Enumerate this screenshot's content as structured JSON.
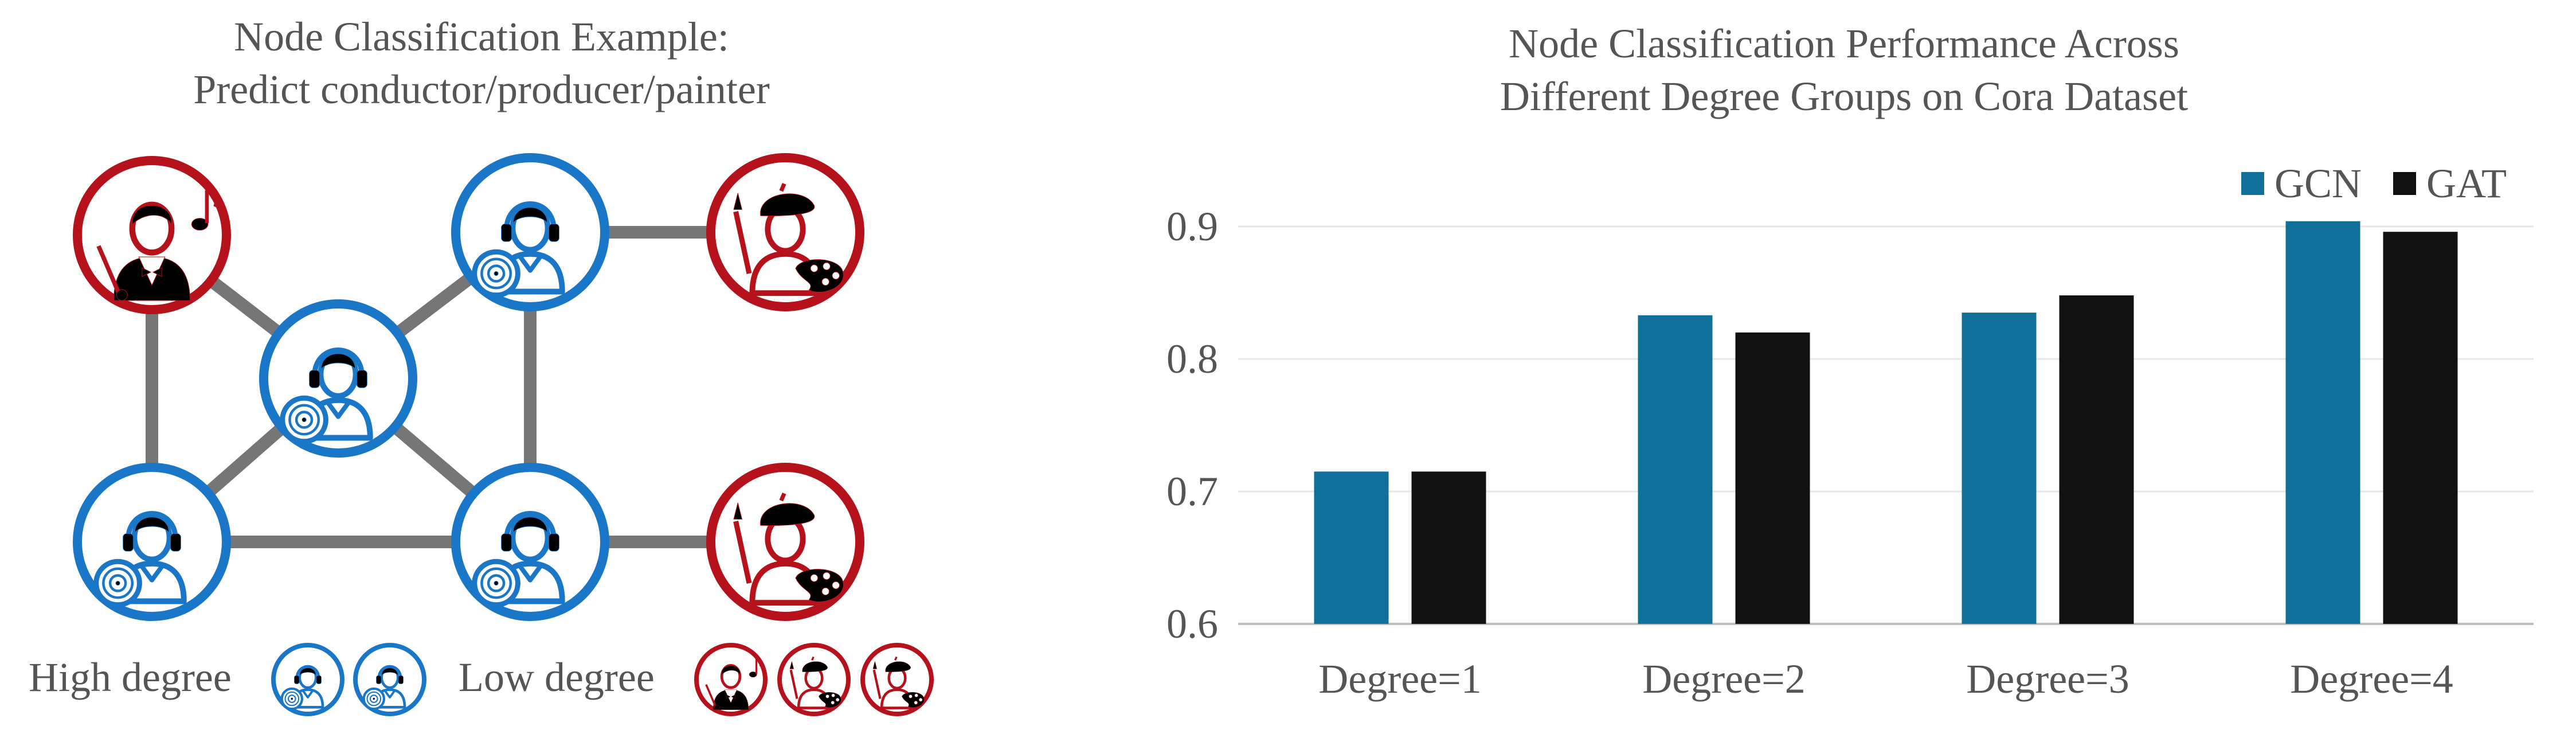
{
  "left_figure": {
    "title_line1": "Node Classification Example:",
    "title_line2": "Predict conductor/producer/painter",
    "legend": {
      "high_label": "High degree",
      "low_label": "Low degree"
    },
    "colors": {
      "blue": "#1A76C7",
      "red": "#B5121B",
      "edge": "#767676"
    },
    "nodes": [
      {
        "role": "conductor",
        "color": "red",
        "icon": "conductor-icon"
      },
      {
        "role": "producer",
        "color": "blue",
        "icon": "headphone-producer-icon"
      },
      {
        "role": "painter",
        "color": "red",
        "icon": "painter-icon"
      },
      {
        "role": "producer",
        "color": "blue",
        "icon": "headphone-producer-icon"
      },
      {
        "role": "producer",
        "color": "blue",
        "icon": "headphone-producer-icon"
      },
      {
        "role": "producer",
        "color": "blue",
        "icon": "headphone-producer-icon"
      },
      {
        "role": "painter",
        "color": "red",
        "icon": "painter-icon"
      }
    ]
  },
  "chart_data": {
    "type": "bar",
    "title_line1": "Node Classification Performance Across",
    "title_line2": "Different Degree Groups on Cora Dataset",
    "categories": [
      "Degree=1",
      "Degree=2",
      "Degree=3",
      "Degree=4"
    ],
    "series": [
      {
        "name": "GCN",
        "color": "#11709A",
        "values": [
          0.715,
          0.833,
          0.835,
          0.904
        ]
      },
      {
        "name": "GAT",
        "color": "#111111",
        "values": [
          0.715,
          0.82,
          0.848,
          0.896
        ]
      }
    ],
    "ylim": [
      0.6,
      0.9
    ],
    "yticks": [
      "0.6",
      "0.7",
      "0.8",
      "0.9"
    ],
    "grid": true,
    "legend_position": "top-right"
  }
}
